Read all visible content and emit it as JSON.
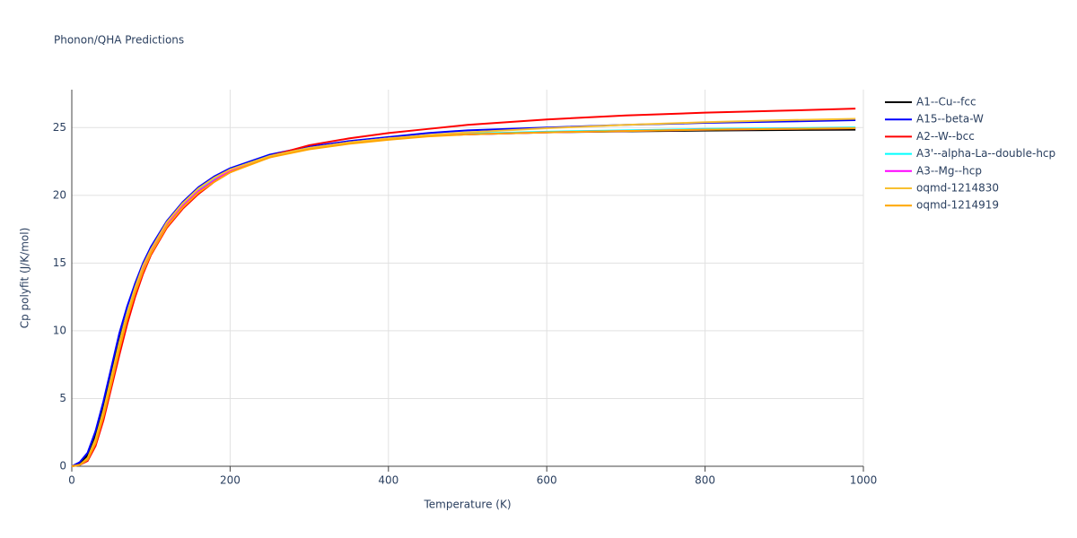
{
  "chart_data": {
    "type": "line",
    "title": "Phonon/QHA Predictions",
    "x_label": "Temperature (K)",
    "y_label": "Cp polyfit (J/K/mol)",
    "x": [
      0,
      10,
      20,
      30,
      40,
      50,
      60,
      70,
      80,
      90,
      100,
      120,
      140,
      160,
      180,
      200,
      250,
      300,
      350,
      400,
      450,
      500,
      600,
      700,
      800,
      900,
      990
    ],
    "series": [
      {
        "name": "A1--Cu--fcc",
        "color": "#000000",
        "values": [
          0,
          0.2,
          0.8,
          2.3,
          4.4,
          6.9,
          9.3,
          11.3,
          13.1,
          14.6,
          15.9,
          17.9,
          19.3,
          20.4,
          21.2,
          21.9,
          22.9,
          23.5,
          23.9,
          24.2,
          24.4,
          24.5,
          24.65,
          24.72,
          24.78,
          24.82,
          24.85
        ]
      },
      {
        "name": "A15--beta-W",
        "color": "#0000ff",
        "values": [
          0,
          0.3,
          1.0,
          2.6,
          4.8,
          7.3,
          9.8,
          11.8,
          13.5,
          15.0,
          16.2,
          18.1,
          19.5,
          20.6,
          21.4,
          22.0,
          23.0,
          23.6,
          24.0,
          24.3,
          24.6,
          24.8,
          25.0,
          25.2,
          25.35,
          25.45,
          25.55
        ]
      },
      {
        "name": "A2--W--bcc",
        "color": "#ff0000",
        "values": [
          0,
          0.1,
          0.4,
          1.5,
          3.4,
          5.8,
          8.2,
          10.5,
          12.5,
          14.2,
          15.6,
          17.6,
          19.0,
          20.1,
          21.0,
          21.7,
          22.9,
          23.7,
          24.2,
          24.6,
          24.9,
          25.2,
          25.6,
          25.9,
          26.1,
          26.25,
          26.4
        ]
      },
      {
        "name": "A3'--alpha-La--double-hcp",
        "color": "#00ffff",
        "values": [
          0,
          0.1,
          0.5,
          1.8,
          3.9,
          6.4,
          8.9,
          11.1,
          13.0,
          14.6,
          15.9,
          17.9,
          19.3,
          20.4,
          21.2,
          21.9,
          22.9,
          23.5,
          23.9,
          24.2,
          24.4,
          24.55,
          24.7,
          24.8,
          24.9,
          24.95,
          25.0
        ]
      },
      {
        "name": "A3--Mg--hcp",
        "color": "#ff00ff",
        "values": [
          0,
          0.1,
          0.5,
          1.8,
          3.8,
          6.3,
          8.8,
          11.0,
          12.9,
          14.5,
          15.8,
          17.8,
          19.2,
          20.3,
          21.1,
          21.8,
          22.8,
          23.5,
          23.9,
          24.2,
          24.4,
          24.5,
          24.65,
          24.75,
          24.85,
          24.9,
          24.95
        ]
      },
      {
        "name": "oqmd-1214830",
        "color": "#f8c030",
        "values": [
          0,
          0.1,
          0.6,
          2.0,
          4.1,
          6.6,
          9.1,
          11.3,
          13.2,
          14.8,
          16.0,
          18.0,
          19.4,
          20.5,
          21.3,
          21.9,
          22.9,
          23.5,
          23.9,
          24.2,
          24.45,
          24.65,
          24.95,
          25.2,
          25.4,
          25.55,
          25.65
        ]
      },
      {
        "name": "oqmd-1214919",
        "color": "#ffa500",
        "values": [
          0,
          0.1,
          0.5,
          1.7,
          3.7,
          6.1,
          8.6,
          10.9,
          12.8,
          14.4,
          15.7,
          17.7,
          19.1,
          20.2,
          21.0,
          21.7,
          22.8,
          23.4,
          23.8,
          24.1,
          24.35,
          24.5,
          24.65,
          24.75,
          24.85,
          24.9,
          24.95
        ]
      }
    ],
    "xlim": [
      0,
      1000
    ],
    "xticks": [
      0,
      200,
      400,
      600,
      800,
      1000
    ],
    "ylim": [
      0,
      27.8
    ],
    "yticks": [
      0,
      5,
      10,
      15,
      20,
      25
    ],
    "grid": true
  }
}
